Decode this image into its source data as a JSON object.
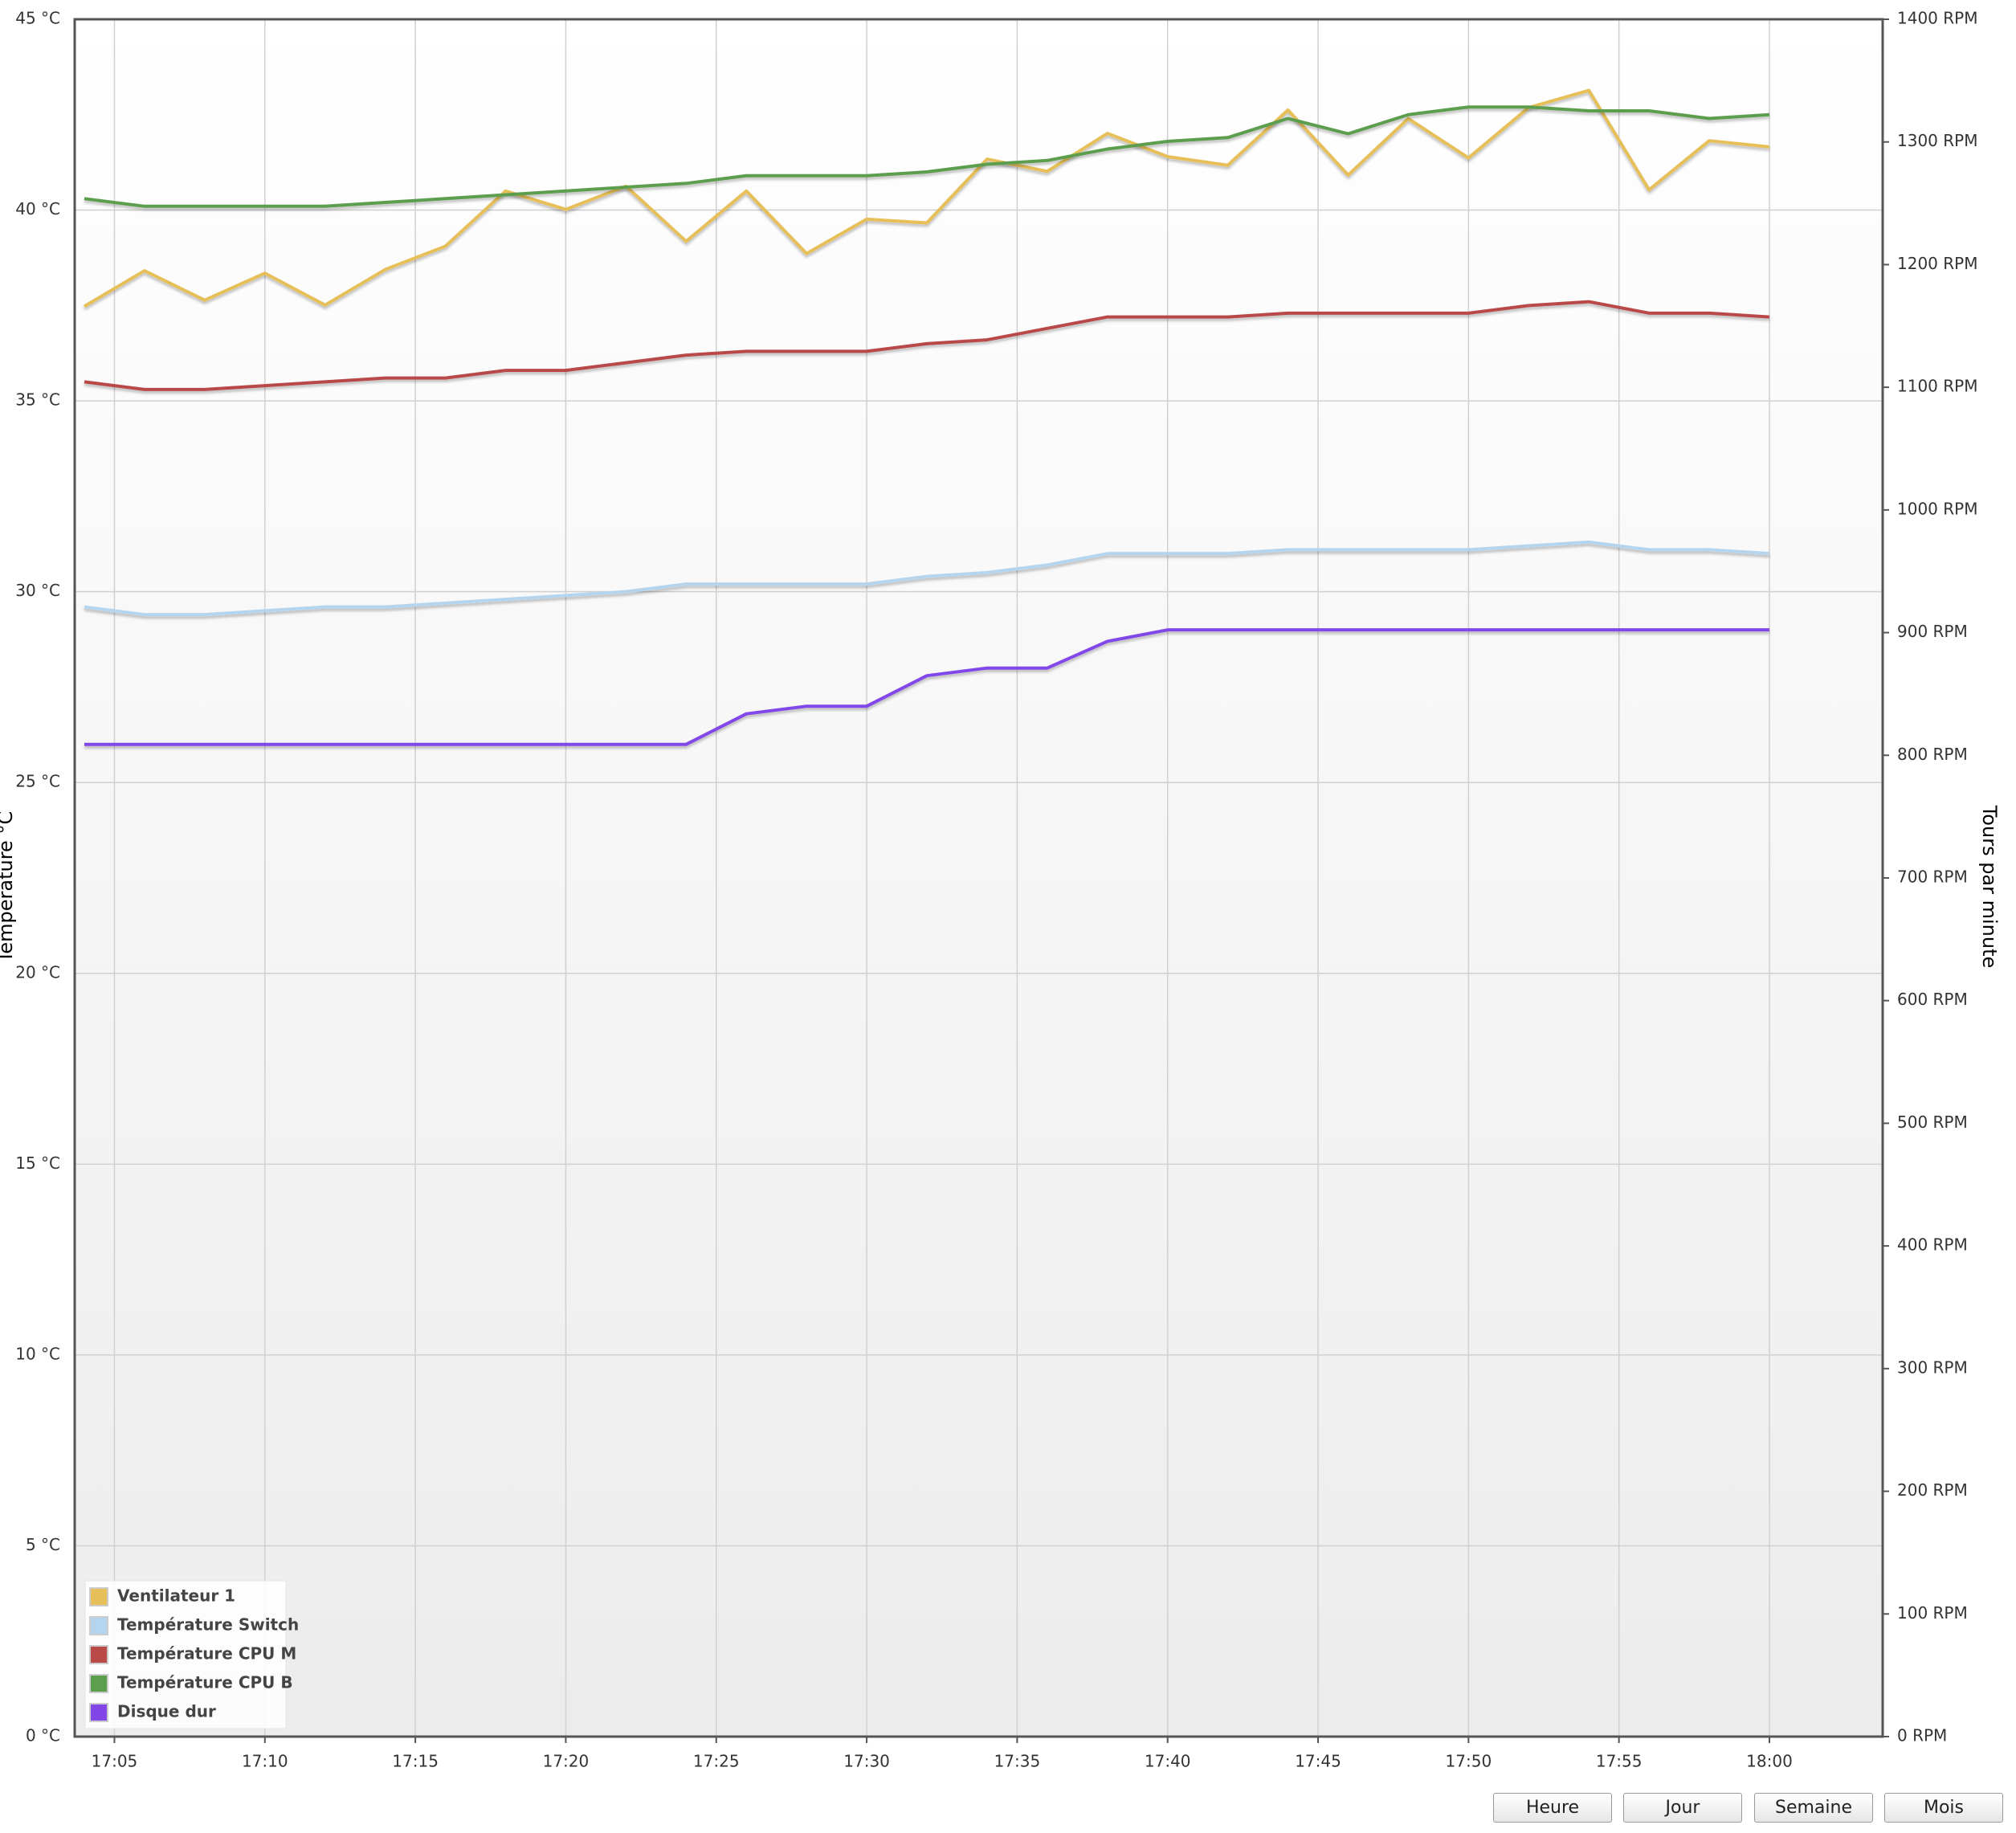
{
  "chart_data": {
    "type": "line",
    "y_label": "Température °C",
    "y2_label": "Tours par minute",
    "x": [
      "17:04",
      "17:06",
      "17:08",
      "17:10",
      "17:12",
      "17:14",
      "17:16",
      "17:18",
      "17:20",
      "17:22",
      "17:24",
      "17:26",
      "17:28",
      "17:30",
      "17:32",
      "17:34",
      "17:36",
      "17:38",
      "17:40",
      "17:42",
      "17:44",
      "17:46",
      "17:48",
      "17:50",
      "17:52",
      "17:54",
      "17:56",
      "17:58",
      "18:00"
    ],
    "xticks": [
      "17:05",
      "17:10",
      "17:15",
      "17:20",
      "17:25",
      "17:30",
      "17:35",
      "17:40",
      "17:45",
      "17:50",
      "17:55",
      "18:00"
    ],
    "ylim": [
      0,
      45
    ],
    "yticks": [
      {
        "value": 0,
        "label": "0 °C"
      },
      {
        "value": 5,
        "label": "5 °C"
      },
      {
        "value": 10,
        "label": "10 °C"
      },
      {
        "value": 15,
        "label": "15 °C"
      },
      {
        "value": 20,
        "label": "20 °C"
      },
      {
        "value": 25,
        "label": "25 °C"
      },
      {
        "value": 30,
        "label": "30 °C"
      },
      {
        "value": 35,
        "label": "35 °C"
      },
      {
        "value": 40,
        "label": "40 °C"
      },
      {
        "value": 45,
        "label": "45 °C"
      }
    ],
    "y2lim": [
      0,
      1400
    ],
    "y2ticks": [
      {
        "value": 0,
        "label": "0 RPM"
      },
      {
        "value": 100,
        "label": "100 RPM"
      },
      {
        "value": 200,
        "label": "200 RPM"
      },
      {
        "value": 300,
        "label": "300 RPM"
      },
      {
        "value": 400,
        "label": "400 RPM"
      },
      {
        "value": 500,
        "label": "500 RPM"
      },
      {
        "value": 600,
        "label": "600 RPM"
      },
      {
        "value": 700,
        "label": "700 RPM"
      },
      {
        "value": 800,
        "label": "800 RPM"
      },
      {
        "value": 900,
        "label": "900 RPM"
      },
      {
        "value": 1000,
        "label": "1000 RPM"
      },
      {
        "value": 1100,
        "label": "1100 RPM"
      },
      {
        "value": 1200,
        "label": "1200 RPM"
      },
      {
        "value": 1300,
        "label": "1300 RPM"
      },
      {
        "value": 1400,
        "label": "1400 RPM"
      }
    ],
    "grid": true,
    "legend": "bottom-left",
    "series": [
      {
        "name": "Ventilateur 1",
        "color": "#e6bf58",
        "axis": "y2",
        "values": [
          1166,
          1195,
          1171,
          1193,
          1167,
          1196,
          1215,
          1260,
          1245,
          1264,
          1219,
          1260,
          1209,
          1237,
          1234,
          1286,
          1276,
          1307,
          1288,
          1281,
          1326,
          1273,
          1319,
          1287,
          1328,
          1342,
          1261,
          1301,
          1296
        ]
      },
      {
        "name": "Température Switch",
        "color": "#b5d5ee",
        "values": [
          29.6,
          29.4,
          29.4,
          29.5,
          29.6,
          29.6,
          29.7,
          29.8,
          29.9,
          30.0,
          30.2,
          30.2,
          30.2,
          30.2,
          30.4,
          30.5,
          30.7,
          31.0,
          31.0,
          31.0,
          31.1,
          31.1,
          31.1,
          31.1,
          31.2,
          31.3,
          31.1,
          31.1,
          31.0
        ]
      },
      {
        "name": "Température CPU M",
        "color": "#b94a48",
        "values": [
          35.5,
          35.3,
          35.3,
          35.4,
          35.5,
          35.6,
          35.6,
          35.8,
          35.8,
          36.0,
          36.2,
          36.3,
          36.3,
          36.3,
          36.5,
          36.6,
          36.9,
          37.2,
          37.2,
          37.2,
          37.3,
          37.3,
          37.3,
          37.3,
          37.5,
          37.6,
          37.3,
          37.3,
          37.2
        ]
      },
      {
        "name": "Température CPU B",
        "color": "#5b9e4d",
        "values": [
          40.3,
          40.1,
          40.1,
          40.1,
          40.1,
          40.2,
          40.3,
          40.4,
          40.5,
          40.6,
          40.7,
          40.9,
          40.9,
          40.9,
          41.0,
          41.2,
          41.3,
          41.6,
          41.8,
          41.9,
          42.4,
          42.0,
          42.5,
          42.7,
          42.7,
          42.6,
          42.6,
          42.4,
          42.5
        ]
      },
      {
        "name": "Disque dur",
        "color": "#8246e8",
        "values": [
          26.0,
          26.0,
          26.0,
          26.0,
          26.0,
          26.0,
          26.0,
          26.0,
          26.0,
          26.0,
          26.0,
          26.8,
          27.0,
          27.0,
          27.8,
          28.0,
          28.0,
          28.7,
          29.0,
          29.0,
          29.0,
          29.0,
          29.0,
          29.0,
          29.0,
          29.0,
          29.0,
          29.0,
          29.0
        ]
      }
    ]
  },
  "buttons": [
    "Heure",
    "Jour",
    "Semaine",
    "Mois"
  ]
}
